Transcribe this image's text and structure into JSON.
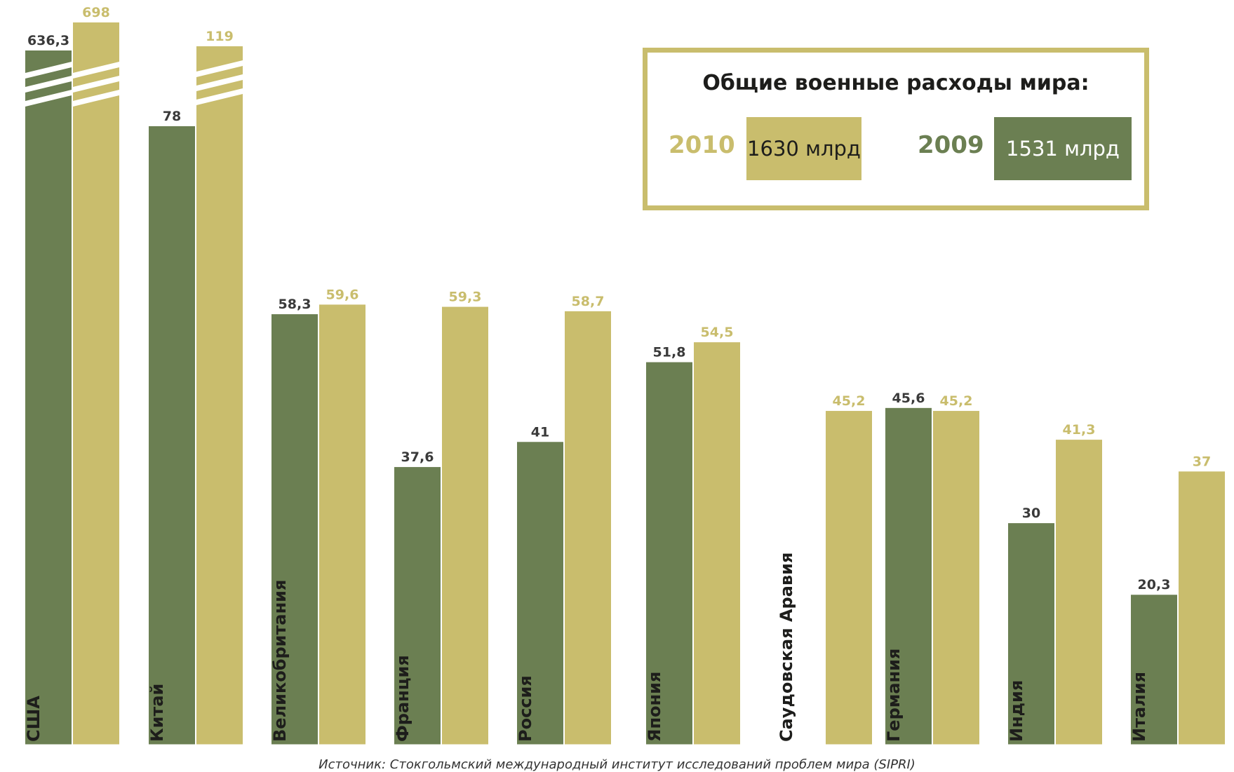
{
  "chart_data": {
    "type": "bar",
    "categories": [
      "США",
      "Китай",
      "Великобритания",
      "Франция",
      "Россия",
      "Япония",
      "Саудовская Аравия",
      "Германия",
      "Индия",
      "Италия"
    ],
    "series": [
      {
        "name": "2009",
        "values": [
          636.3,
          78,
          58.3,
          37.6,
          41,
          51.8,
          null,
          45.6,
          30,
          20.3
        ],
        "labels": [
          "636,3",
          "78",
          "58,3",
          "37,6",
          "41",
          "51,8",
          "",
          "45,6",
          "30",
          "20,3"
        ]
      },
      {
        "name": "2010",
        "values": [
          698,
          119,
          59.6,
          59.3,
          58.7,
          54.5,
          45.2,
          45.2,
          41.3,
          37
        ],
        "labels": [
          "698",
          "119",
          "59,6",
          "59,3",
          "58,7",
          "54,5",
          "45,2",
          "45,2",
          "41,3",
          "37"
        ]
      }
    ],
    "axis_break_categories": [
      "США",
      "Китай"
    ],
    "colors": {
      "2009": "#6b7f52",
      "2010": "#c9bd6d",
      "label_2009": "#3a3a3a",
      "label_2010": "#c9bd6d"
    }
  },
  "legend": {
    "title": "Общие военные расходы мира:",
    "year_2010": "2010",
    "value_2010": "1630 млрд",
    "year_2009": "2009",
    "value_2009": "1531 млрд"
  },
  "source": "Источник: Стокгольмский международный институт исследований проблем мира (SIPRI)"
}
